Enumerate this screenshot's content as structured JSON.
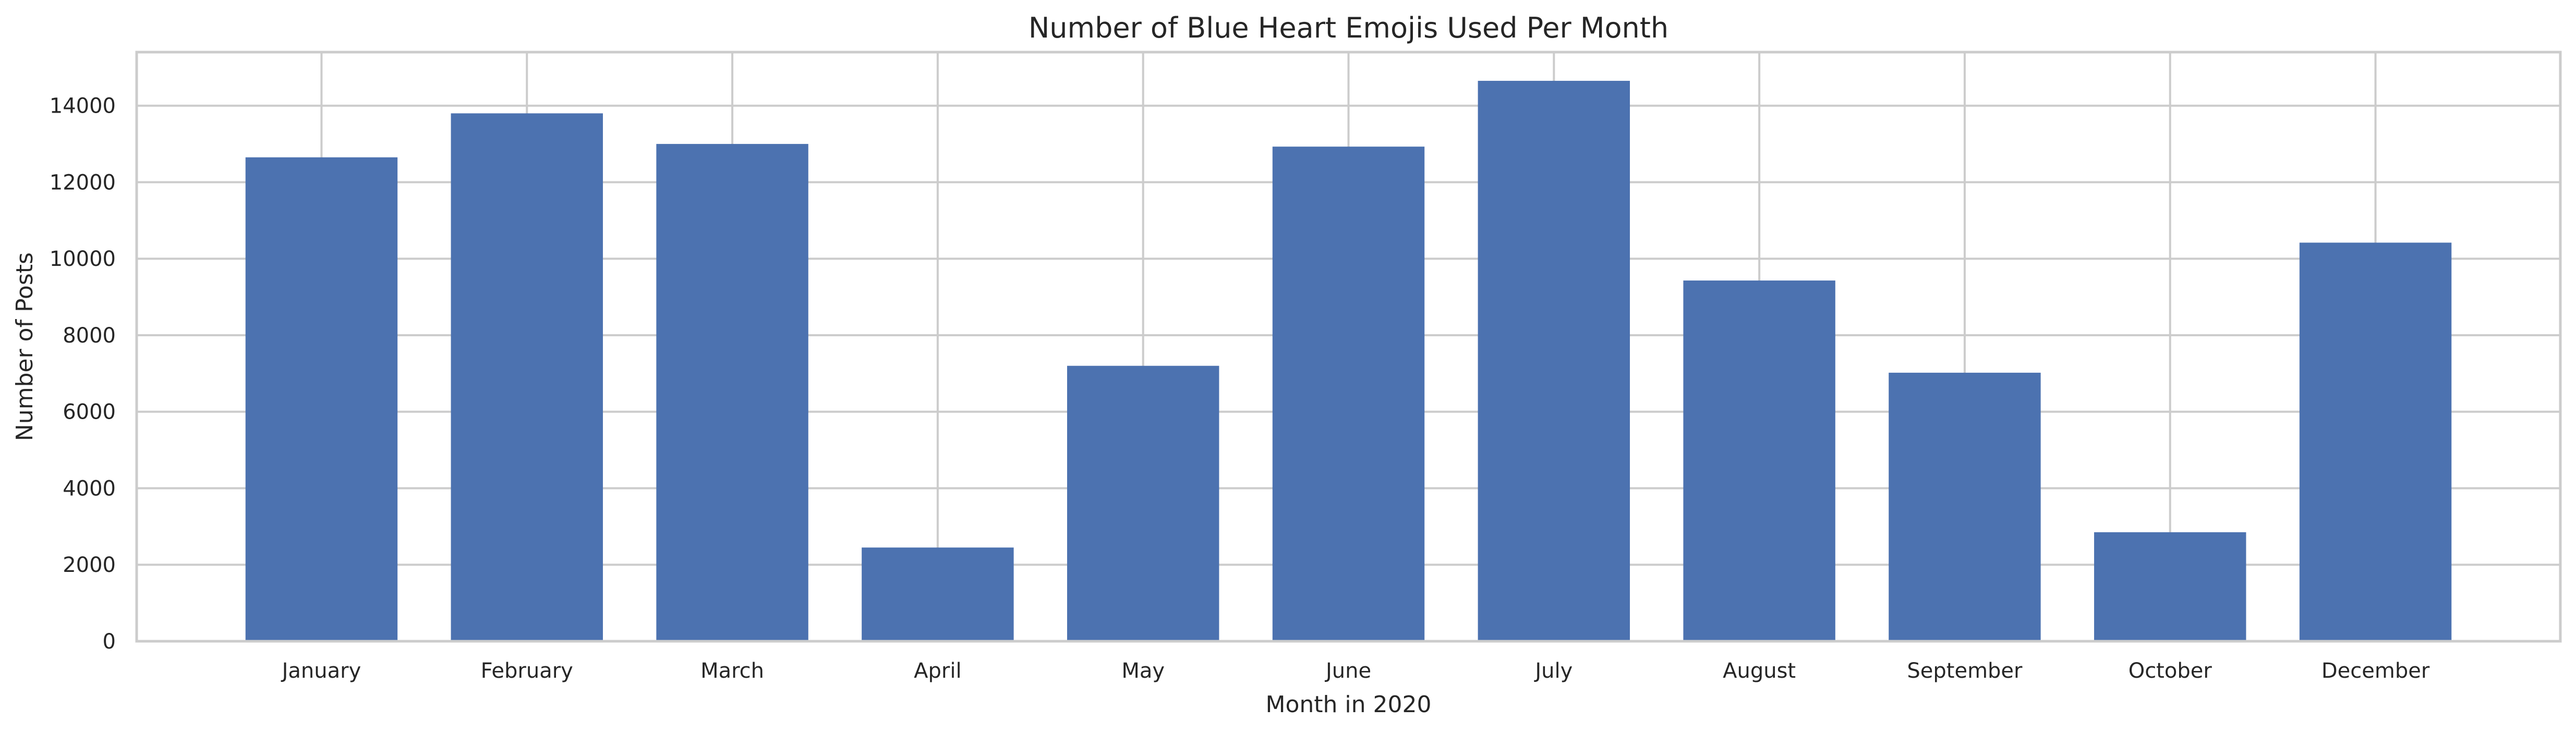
{
  "chart_data": {
    "type": "bar",
    "title": "Number of Blue Heart Emojis Used Per Month",
    "xlabel": "Month in 2020",
    "ylabel": "Number of Posts",
    "categories": [
      "January",
      "February",
      "March",
      "April",
      "May",
      "June",
      "July",
      "August",
      "September",
      "October",
      "December"
    ],
    "values": [
      12650,
      13800,
      13000,
      2450,
      7200,
      12930,
      14650,
      9430,
      7020,
      2850,
      10420
    ],
    "ylim": [
      0,
      15400
    ],
    "yticks": [
      0,
      2000,
      4000,
      6000,
      8000,
      10000,
      12000,
      14000
    ],
    "ytick_labels": [
      "0",
      "2000",
      "4000",
      "6000",
      "8000",
      "10000",
      "12000",
      "14000"
    ],
    "bar_color": "#4c72b0",
    "grid": true,
    "legend": null
  }
}
